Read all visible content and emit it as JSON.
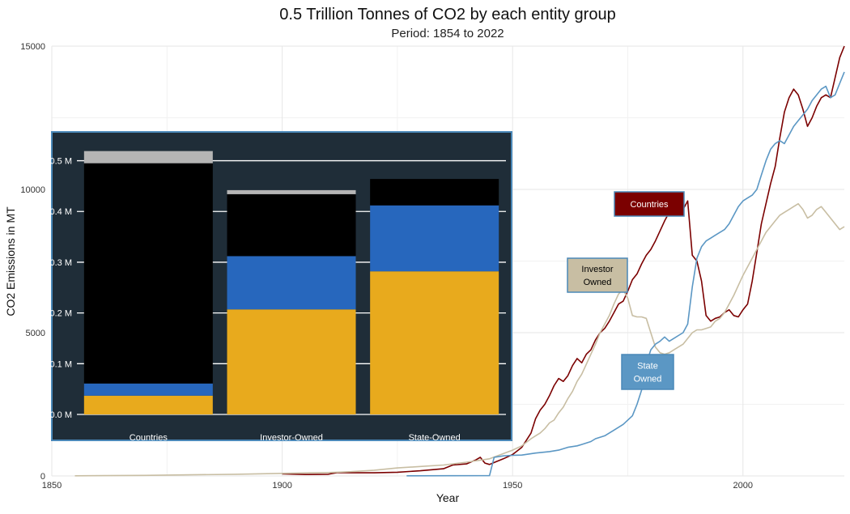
{
  "chart_data": [
    {
      "type": "line",
      "title": "0.5 Trillion Tonnes of CO2 by each entity group",
      "subtitle": "Period: 1854 to 2022",
      "xlabel": "Year",
      "ylabel": "CO2 Emissions in MT",
      "xlim": [
        1850,
        2022
      ],
      "ylim": [
        0,
        15000
      ],
      "x_ticks": [
        "1850",
        "1900",
        "1950",
        "2000"
      ],
      "x_tick_values": [
        1850,
        1900,
        1950,
        2000
      ],
      "y_ticks": [
        "0",
        "5000",
        "10000",
        "15000"
      ],
      "y_tick_values": [
        0,
        5000,
        10000,
        15000
      ],
      "grid": true,
      "series": [
        {
          "name": "Countries",
          "color": "#7b0000",
          "text_color": "#ffffff",
          "label_lines": [
            "Countries"
          ],
          "points": [
            [
              1900,
              70
            ],
            [
              1905,
              50
            ],
            [
              1910,
              60
            ],
            [
              1912,
              120
            ],
            [
              1915,
              110
            ],
            [
              1920,
              110
            ],
            [
              1925,
              130
            ],
            [
              1930,
              180
            ],
            [
              1935,
              250
            ],
            [
              1937,
              380
            ],
            [
              1940,
              420
            ],
            [
              1942,
              560
            ],
            [
              1943,
              650
            ],
            [
              1944,
              450
            ],
            [
              1945,
              400
            ],
            [
              1946,
              470
            ],
            [
              1948,
              600
            ],
            [
              1950,
              750
            ],
            [
              1952,
              1000
            ],
            [
              1953,
              1250
            ],
            [
              1954,
              1500
            ],
            [
              1955,
              2000
            ],
            [
              1956,
              2300
            ],
            [
              1957,
              2500
            ],
            [
              1958,
              2800
            ],
            [
              1959,
              3150
            ],
            [
              1960,
              3400
            ],
            [
              1961,
              3300
            ],
            [
              1962,
              3500
            ],
            [
              1963,
              3850
            ],
            [
              1964,
              4100
            ],
            [
              1965,
              3950
            ],
            [
              1966,
              4250
            ],
            [
              1967,
              4400
            ],
            [
              1968,
              4750
            ],
            [
              1969,
              5000
            ],
            [
              1970,
              5150
            ],
            [
              1971,
              5400
            ],
            [
              1972,
              5700
            ],
            [
              1973,
              6000
            ],
            [
              1974,
              6100
            ],
            [
              1975,
              6450
            ],
            [
              1976,
              6850
            ],
            [
              1977,
              7050
            ],
            [
              1978,
              7400
            ],
            [
              1979,
              7700
            ],
            [
              1980,
              7900
            ],
            [
              1981,
              8200
            ],
            [
              1982,
              8550
            ],
            [
              1983,
              8900
            ],
            [
              1984,
              9200
            ],
            [
              1985,
              9400
            ],
            [
              1986,
              9650
            ],
            [
              1987,
              9300
            ],
            [
              1988,
              9600
            ],
            [
              1989,
              7700
            ],
            [
              1990,
              7500
            ],
            [
              1991,
              6800
            ],
            [
              1992,
              5600
            ],
            [
              1993,
              5400
            ],
            [
              1994,
              5500
            ],
            [
              1995,
              5550
            ],
            [
              1996,
              5700
            ],
            [
              1997,
              5800
            ],
            [
              1998,
              5600
            ],
            [
              1999,
              5550
            ],
            [
              2000,
              5800
            ],
            [
              2001,
              6000
            ],
            [
              2002,
              6800
            ],
            [
              2003,
              7800
            ],
            [
              2004,
              8800
            ],
            [
              2005,
              9500
            ],
            [
              2006,
              10200
            ],
            [
              2007,
              10800
            ],
            [
              2008,
              11800
            ],
            [
              2009,
              12700
            ],
            [
              2010,
              13200
            ],
            [
              2011,
              13500
            ],
            [
              2012,
              13300
            ],
            [
              2013,
              12800
            ],
            [
              2014,
              12200
            ],
            [
              2015,
              12500
            ],
            [
              2016,
              12900
            ],
            [
              2017,
              13200
            ],
            [
              2018,
              13300
            ],
            [
              2019,
              13200
            ],
            [
              2020,
              13900
            ],
            [
              2021,
              14600
            ],
            [
              2022,
              15000
            ]
          ]
        },
        {
          "name": "Investor Owned",
          "color": "#c8bea3",
          "text_color": "#000000",
          "label_lines": [
            "Investor",
            "Owned"
          ],
          "points": [
            [
              1855,
              5
            ],
            [
              1870,
              20
            ],
            [
              1880,
              40
            ],
            [
              1890,
              60
            ],
            [
              1900,
              90
            ],
            [
              1910,
              120
            ],
            [
              1915,
              150
            ],
            [
              1920,
              200
            ],
            [
              1925,
              280
            ],
            [
              1930,
              330
            ],
            [
              1935,
              380
            ],
            [
              1940,
              480
            ],
            [
              1945,
              600
            ],
            [
              1950,
              900
            ],
            [
              1952,
              1050
            ],
            [
              1954,
              1300
            ],
            [
              1955,
              1400
            ],
            [
              1956,
              1500
            ],
            [
              1957,
              1650
            ],
            [
              1958,
              1850
            ],
            [
              1959,
              1950
            ],
            [
              1960,
              2200
            ],
            [
              1961,
              2400
            ],
            [
              1962,
              2700
            ],
            [
              1963,
              2950
            ],
            [
              1964,
              3300
            ],
            [
              1965,
              3550
            ],
            [
              1966,
              3900
            ],
            [
              1967,
              4250
            ],
            [
              1968,
              4600
            ],
            [
              1969,
              5000
            ],
            [
              1970,
              5300
            ],
            [
              1971,
              5600
            ],
            [
              1972,
              6000
            ],
            [
              1973,
              6350
            ],
            [
              1974,
              6500
            ],
            [
              1975,
              6200
            ],
            [
              1976,
              5600
            ],
            [
              1977,
              5550
            ],
            [
              1978,
              5550
            ],
            [
              1979,
              5500
            ],
            [
              1980,
              5000
            ],
            [
              1981,
              4500
            ],
            [
              1982,
              4300
            ],
            [
              1983,
              4250
            ],
            [
              1984,
              4300
            ],
            [
              1985,
              4400
            ],
            [
              1986,
              4500
            ],
            [
              1987,
              4600
            ],
            [
              1988,
              4800
            ],
            [
              1989,
              5000
            ],
            [
              1990,
              5100
            ],
            [
              1991,
              5100
            ],
            [
              1992,
              5150
            ],
            [
              1993,
              5200
            ],
            [
              1994,
              5400
            ],
            [
              1995,
              5500
            ],
            [
              1996,
              5700
            ],
            [
              1997,
              6000
            ],
            [
              1998,
              6300
            ],
            [
              1999,
              6650
            ],
            [
              2000,
              7000
            ],
            [
              2001,
              7300
            ],
            [
              2002,
              7600
            ],
            [
              2003,
              7900
            ],
            [
              2004,
              8200
            ],
            [
              2005,
              8500
            ],
            [
              2006,
              8700
            ],
            [
              2007,
              8900
            ],
            [
              2008,
              9100
            ],
            [
              2009,
              9200
            ],
            [
              2010,
              9300
            ],
            [
              2011,
              9400
            ],
            [
              2012,
              9500
            ],
            [
              2013,
              9300
            ],
            [
              2014,
              9000
            ],
            [
              2015,
              9100
            ],
            [
              2016,
              9300
            ],
            [
              2017,
              9400
            ],
            [
              2018,
              9200
            ],
            [
              2019,
              9000
            ],
            [
              2020,
              8800
            ],
            [
              2021,
              8600
            ],
            [
              2022,
              8700
            ]
          ]
        },
        {
          "name": "State Owned",
          "color": "#5b97c4",
          "text_color": "#ffffff",
          "label_lines": [
            "State",
            "Owned"
          ],
          "points": [
            [
              1927,
              5
            ],
            [
              1945,
              10
            ],
            [
              1946,
              650
            ],
            [
              1948,
              700
            ],
            [
              1950,
              720
            ],
            [
              1952,
              730
            ],
            [
              1955,
              800
            ],
            [
              1958,
              850
            ],
            [
              1960,
              900
            ],
            [
              1962,
              1000
            ],
            [
              1964,
              1050
            ],
            [
              1965,
              1100
            ],
            [
              1967,
              1200
            ],
            [
              1968,
              1300
            ],
            [
              1970,
              1400
            ],
            [
              1972,
              1600
            ],
            [
              1974,
              1800
            ],
            [
              1976,
              2100
            ],
            [
              1977,
              2500
            ],
            [
              1978,
              3000
            ],
            [
              1979,
              3900
            ],
            [
              1980,
              4400
            ],
            [
              1981,
              4600
            ],
            [
              1982,
              4700
            ],
            [
              1983,
              4850
            ],
            [
              1984,
              4700
            ],
            [
              1985,
              4800
            ],
            [
              1986,
              4900
            ],
            [
              1987,
              5000
            ],
            [
              1988,
              5300
            ],
            [
              1989,
              6600
            ],
            [
              1990,
              7600
            ],
            [
              1991,
              8000
            ],
            [
              1992,
              8200
            ],
            [
              1993,
              8300
            ],
            [
              1994,
              8400
            ],
            [
              1995,
              8500
            ],
            [
              1996,
              8600
            ],
            [
              1997,
              8800
            ],
            [
              1998,
              9100
            ],
            [
              1999,
              9400
            ],
            [
              2000,
              9600
            ],
            [
              2001,
              9700
            ],
            [
              2002,
              9800
            ],
            [
              2003,
              10000
            ],
            [
              2004,
              10500
            ],
            [
              2005,
              11000
            ],
            [
              2006,
              11400
            ],
            [
              2007,
              11600
            ],
            [
              2008,
              11700
            ],
            [
              2009,
              11600
            ],
            [
              2010,
              11900
            ],
            [
              2011,
              12200
            ],
            [
              2012,
              12400
            ],
            [
              2013,
              12600
            ],
            [
              2014,
              12800
            ],
            [
              2015,
              13100
            ],
            [
              2016,
              13300
            ],
            [
              2017,
              13500
            ],
            [
              2018,
              13600
            ],
            [
              2019,
              13200
            ],
            [
              2020,
              13300
            ],
            [
              2021,
              13700
            ],
            [
              2022,
              14100
            ]
          ]
        }
      ]
    },
    {
      "type": "bar",
      "stacked": true,
      "categories": [
        "Countries",
        "Investor-Owned",
        "State-Owned"
      ],
      "y_ticks": [
        "0.0 M",
        "0.1 M",
        "0.2 M",
        "0.3 M",
        "0.4 M",
        "0.5 M"
      ],
      "y_tick_values": [
        0,
        0.1,
        0.2,
        0.3,
        0.4,
        0.5
      ],
      "ylim": [
        0,
        0.52
      ],
      "background": "#1f2d38",
      "segment_colors": [
        "#e8aa1d",
        "#2767bd",
        "#000000",
        "#b5b5b5"
      ],
      "stacks": [
        [
          0.037,
          0.024,
          0.434,
          0.024
        ],
        [
          0.207,
          0.105,
          0.122,
          0.008
        ],
        [
          0.282,
          0.13,
          0.052,
          0.0
        ]
      ]
    }
  ]
}
